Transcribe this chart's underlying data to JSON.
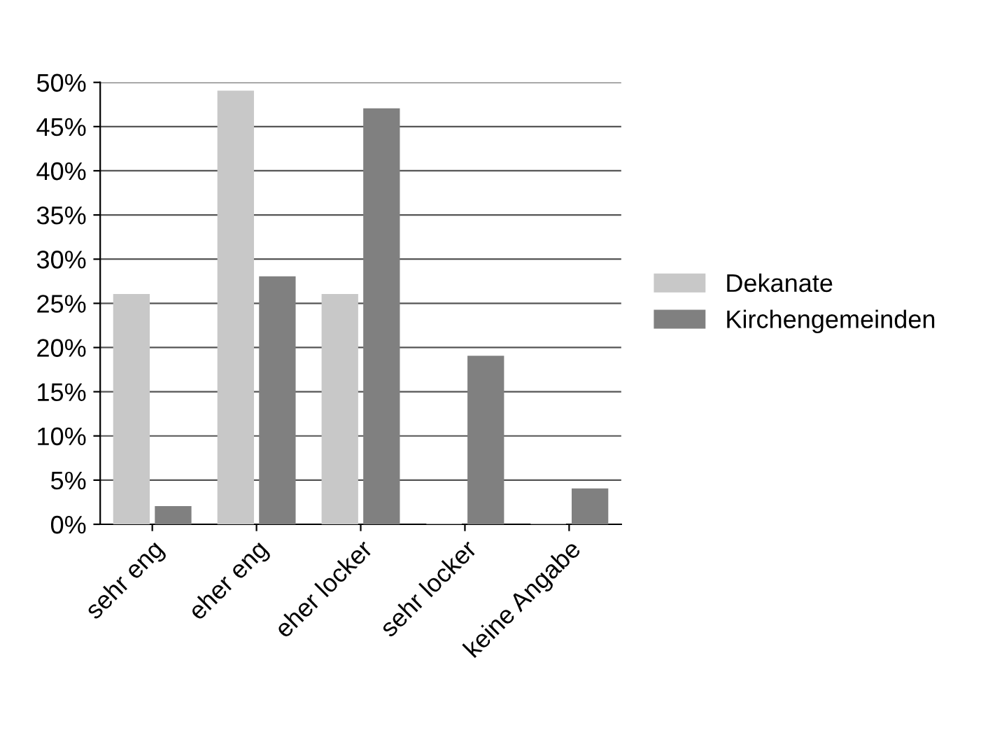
{
  "chart_data": {
    "type": "bar",
    "categories": [
      "sehr eng",
      "eher eng",
      "eher locker",
      "sehr locker",
      "keine Angabe"
    ],
    "series": [
      {
        "name": "Dekanate",
        "color": "#c8c8c8",
        "values": [
          26,
          49,
          26,
          0,
          0
        ]
      },
      {
        "name": "Kirchengemeinden",
        "color": "#808080",
        "values": [
          2,
          28,
          47,
          19,
          4
        ]
      }
    ],
    "ylim": [
      0,
      50
    ],
    "yticks": [
      {
        "value": 0,
        "label": "0%"
      },
      {
        "value": 5,
        "label": "5%"
      },
      {
        "value": 10,
        "label": "10%"
      },
      {
        "value": 15,
        "label": "15%"
      },
      {
        "value": 20,
        "label": "20%"
      },
      {
        "value": 25,
        "label": "25%"
      },
      {
        "value": 30,
        "label": "30%"
      },
      {
        "value": 35,
        "label": "35%"
      },
      {
        "value": 40,
        "label": "40%"
      },
      {
        "value": 45,
        "label": "45%"
      },
      {
        "value": 50,
        "label": "50%"
      }
    ],
    "grid": "y",
    "legend": "right"
  }
}
